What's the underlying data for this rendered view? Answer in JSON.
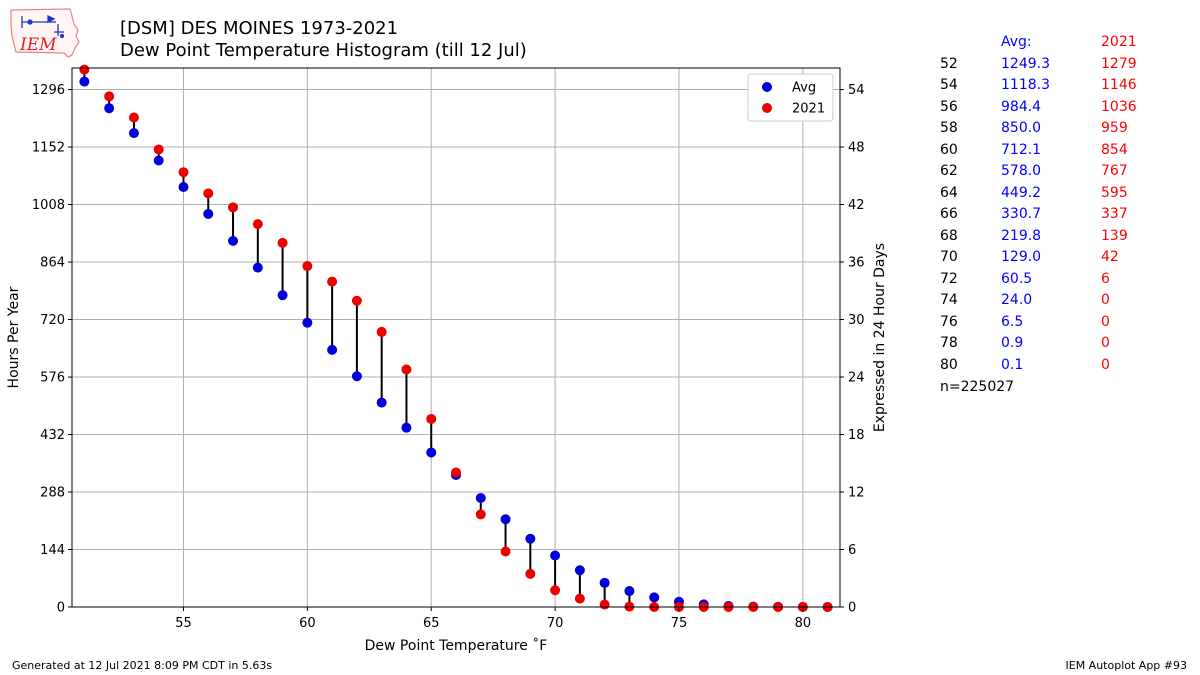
{
  "logo_text": "IEM",
  "title_line1": "[DSM] DES MOINES 1973-2021",
  "title_line2": "Dew Point Temperature Histogram (till 12 Jul)",
  "chart_data": {
    "type": "scatter",
    "xlabel": "Dew Point Temperature ˚F",
    "ylabel": "Hours Per Year",
    "y2label": "Expressed in 24 Hour Days",
    "xlim": [
      50.5,
      81.5
    ],
    "ylim": [
      0,
      1350
    ],
    "y2lim": [
      0,
      56.25
    ],
    "xticks": [
      55,
      60,
      65,
      70,
      75,
      80
    ],
    "yticks": [
      0,
      144,
      288,
      432,
      576,
      720,
      864,
      1008,
      1152,
      1296
    ],
    "y2ticks": [
      0,
      6,
      12,
      18,
      24,
      30,
      36,
      42,
      48,
      54
    ],
    "grid": true,
    "legend_position": "top-right",
    "x": [
      51,
      52,
      53,
      54,
      55,
      56,
      57,
      58,
      59,
      60,
      61,
      62,
      63,
      64,
      65,
      66,
      67,
      68,
      69,
      70,
      71,
      72,
      73,
      74,
      75,
      76,
      77,
      78,
      79,
      80,
      81
    ],
    "series": [
      {
        "name": "Avg",
        "color": "#0000dd",
        "values": [
          1316,
          1249.3,
          1187,
          1118.3,
          1052,
          984.4,
          917,
          850.0,
          781,
          712.1,
          644,
          578.0,
          512,
          449.2,
          387,
          330.7,
          273,
          219.8,
          171,
          129.0,
          92,
          60.5,
          40,
          24.0,
          13,
          6.5,
          2.5,
          0.9,
          0.4,
          0.1,
          0.05
        ]
      },
      {
        "name": "2021",
        "color": "#ee0000",
        "values": [
          1346,
          1279,
          1226,
          1146,
          1089,
          1036,
          1001,
          959,
          912,
          854,
          815,
          767,
          689,
          595,
          471,
          337,
          232,
          139,
          83,
          42,
          21,
          6,
          1,
          0,
          0,
          0,
          0,
          0,
          0,
          0,
          0
        ]
      }
    ]
  },
  "stats": {
    "header": [
      "",
      "Avg:",
      "2021"
    ],
    "rows": [
      [
        "52",
        "1249.3",
        "1279"
      ],
      [
        "54",
        "1118.3",
        "1146"
      ],
      [
        "56",
        "984.4",
        "1036"
      ],
      [
        "58",
        "850.0",
        "959"
      ],
      [
        "60",
        "712.1",
        "854"
      ],
      [
        "62",
        "578.0",
        "767"
      ],
      [
        "64",
        "449.2",
        "595"
      ],
      [
        "66",
        "330.7",
        "337"
      ],
      [
        "68",
        "219.8",
        "139"
      ],
      [
        "70",
        "129.0",
        "42"
      ],
      [
        "72",
        "60.5",
        "6"
      ],
      [
        "74",
        "24.0",
        "0"
      ],
      [
        "76",
        "6.5",
        "0"
      ],
      [
        "78",
        "0.9",
        "0"
      ],
      [
        "80",
        "0.1",
        "0"
      ]
    ],
    "n": "n=225027"
  },
  "footer_left": "Generated at 12 Jul 2021 8:09 PM CDT in 5.63s",
  "footer_right": "IEM Autoplot App #93"
}
